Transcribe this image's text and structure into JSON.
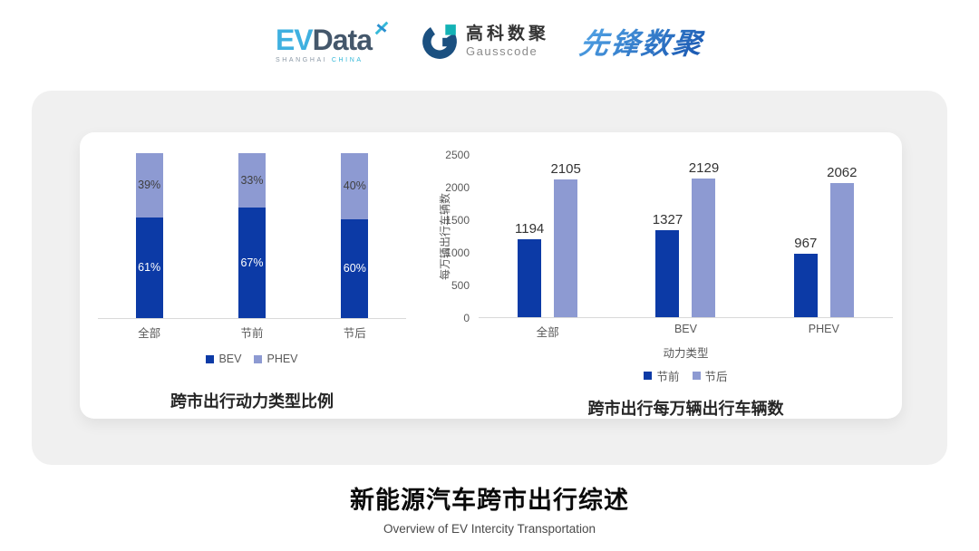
{
  "logos": {
    "evdata": {
      "ev": "EV",
      "data": "Data",
      "sub1": "SHANGHAI",
      "sub2": "CHINA"
    },
    "gausscode": {
      "cn": "高科数聚",
      "en": "Gausscode"
    },
    "pioneer": {
      "text": "先锋数聚"
    }
  },
  "colors": {
    "bev_dark_blue": "#0c3aa6",
    "phev_light_blue": "#8d9ad2",
    "axis_line": "#d9d9d9",
    "tick_text": "#595959",
    "value_text": "#333333"
  },
  "chart_data": [
    {
      "type": "bar",
      "subtype": "stacked-percent",
      "title": "跨市出行动力类型比例",
      "categories": [
        "全部",
        "节前",
        "节后"
      ],
      "series": [
        {
          "name": "BEV",
          "values": [
            61,
            67,
            60
          ],
          "labels": [
            "61%",
            "67%",
            "60%"
          ],
          "color": "#0c3aa6"
        },
        {
          "name": "PHEV",
          "values": [
            39,
            33,
            40
          ],
          "labels": [
            "39%",
            "33%",
            "40%"
          ],
          "color": "#8d9ad2"
        }
      ],
      "ylim": [
        0,
        100
      ],
      "grid": false,
      "legend_position": "bottom"
    },
    {
      "type": "bar",
      "subtype": "grouped",
      "title": "跨市出行每万辆出行车辆数",
      "categories": [
        "全部",
        "BEV",
        "PHEV"
      ],
      "series": [
        {
          "name": "节前",
          "values": [
            1194,
            1327,
            967
          ],
          "color": "#0c3aa6"
        },
        {
          "name": "节后",
          "values": [
            2105,
            2129,
            2062
          ],
          "color": "#8d9ad2"
        }
      ],
      "xlabel": "动力类型",
      "ylabel": "每万辆出行车辆数",
      "yticks": [
        0,
        500,
        1000,
        1500,
        2000,
        2500
      ],
      "ylim": [
        0,
        2500
      ],
      "grid": false,
      "legend_position": "bottom"
    }
  ],
  "footer": {
    "title": "新能源汽车跨市出行综述",
    "subtitle": "Overview of EV Intercity Transportation"
  }
}
